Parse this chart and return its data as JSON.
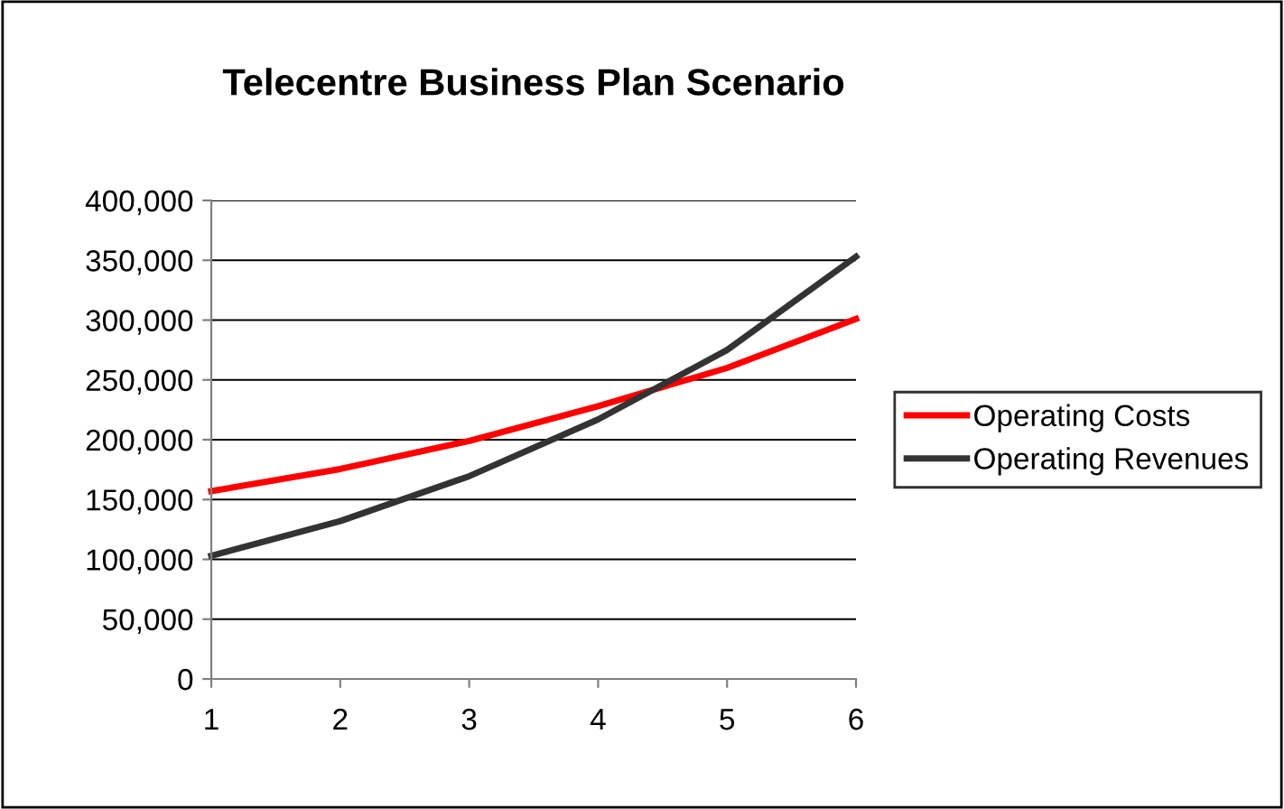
{
  "chart_data": {
    "type": "line",
    "title": "Telecentre Business Plan Scenario",
    "x": [
      1,
      2,
      3,
      4,
      5,
      6
    ],
    "series": [
      {
        "name": "Operating Costs",
        "color": "#ff0000",
        "values": [
          157000,
          175500,
          199000,
          228000,
          260000,
          301000
        ]
      },
      {
        "name": "Operating Revenues",
        "color": "#333333",
        "values": [
          103000,
          132000,
          169500,
          217000,
          275000,
          353000
        ]
      }
    ],
    "xlim": [
      1,
      6
    ],
    "xticks": [
      1,
      2,
      3,
      4,
      5,
      6
    ],
    "ylim": [
      0,
      400000
    ],
    "yticks": [
      {
        "value": 0,
        "label": "0"
      },
      {
        "value": 50000,
        "label": "50,000"
      },
      {
        "value": 100000,
        "label": "100,000"
      },
      {
        "value": 150000,
        "label": "150,000"
      },
      {
        "value": 200000,
        "label": "200,000"
      },
      {
        "value": 250000,
        "label": "250,000"
      },
      {
        "value": 300000,
        "label": "300,000"
      },
      {
        "value": 350000,
        "label": "350,000"
      },
      {
        "value": 400000,
        "label": "400,000"
      }
    ],
    "grid": "y",
    "legend": "right",
    "marker": "none",
    "line_style": "solid"
  }
}
